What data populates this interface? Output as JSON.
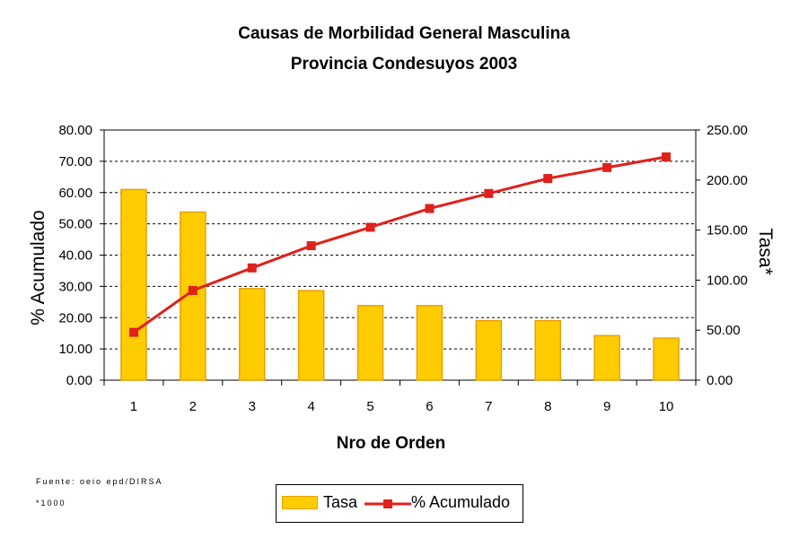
{
  "chart_data": {
    "type": "bar+line",
    "title": "Causas de Morbilidad General Masculina",
    "subtitle": "Provincia Condesuyos 2003",
    "xlabel": "Nro de Orden",
    "ylabel_left": "% Acumulado",
    "ylabel_right": "Tasa*",
    "categories": [
      "1",
      "2",
      "3",
      "4",
      "5",
      "6",
      "7",
      "8",
      "9",
      "10"
    ],
    "ylim_left": [
      0,
      80
    ],
    "ylim_right": [
      0,
      250
    ],
    "yticks_left": [
      "0.00",
      "10.00",
      "20.00",
      "30.00",
      "40.00",
      "50.00",
      "60.00",
      "70.00",
      "80.00"
    ],
    "yticks_right": [
      "0.00",
      "50.00",
      "100.00",
      "150.00",
      "200.00",
      "250.00"
    ],
    "series": [
      {
        "name": "Tasa",
        "type": "bar",
        "axis": "right",
        "color": "#FFCC00",
        "edge": "#E8A000",
        "values": [
          190.5,
          168.0,
          91.5,
          89.5,
          74.5,
          74.5,
          59.5,
          59.5,
          44.5,
          42.0
        ]
      },
      {
        "name": "% Acumulado",
        "type": "line",
        "axis": "left",
        "color": "#E0201B",
        "values": [
          15.3,
          28.7,
          35.9,
          43.0,
          48.9,
          54.9,
          59.7,
          64.5,
          68.0,
          71.4
        ]
      }
    ],
    "legend": {
      "position": "bottom",
      "entries": [
        "Tasa",
        "% Acumulado"
      ]
    },
    "gridlines": "dashed-horizontal"
  },
  "footer": {
    "source": "Fuente: oeio epd/DIRSA",
    "note": "*1000"
  }
}
